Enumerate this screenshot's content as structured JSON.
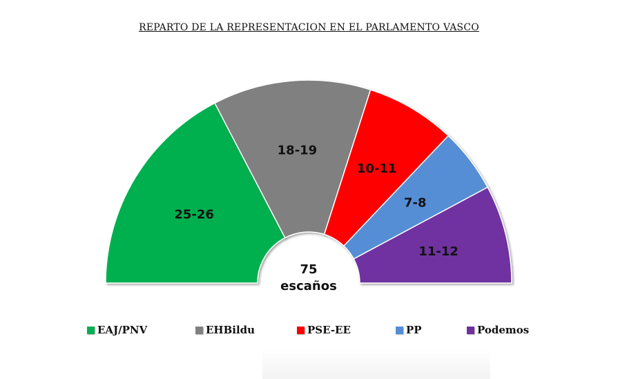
{
  "title": "REPARTO DE LA REPRESENTACION EN EL PARLAMENTO VASCO",
  "center_label": {
    "line1": "75",
    "line2": "escaños"
  },
  "chart_data": {
    "type": "pie",
    "subtype": "half-donut",
    "title": "REPARTO DE LA REPRESENTACION EN EL PARLAMENTO VASCO",
    "total": 75,
    "total_label": "75 escaños",
    "categories": [
      "EAJ/PNV",
      "EHBildu",
      "PSE-EE",
      "PP",
      "Podemos"
    ],
    "values": [
      25.5,
      18.5,
      10.5,
      7.5,
      11.5
    ],
    "labels": [
      "25-26",
      "18-19",
      "10-11",
      "7-8",
      "11-12"
    ],
    "colors": [
      "#00b050",
      "#808080",
      "#ff0000",
      "#558ed5",
      "#7030a0"
    ],
    "legend_position": "bottom"
  },
  "legend": [
    {
      "label": "EAJ/PNV",
      "color": "#00b050"
    },
    {
      "label": "EHBildu",
      "color": "#808080"
    },
    {
      "label": "PSE-EE",
      "color": "#ff0000"
    },
    {
      "label": "PP",
      "color": "#558ed5"
    },
    {
      "label": "Podemos",
      "color": "#7030a0"
    }
  ]
}
